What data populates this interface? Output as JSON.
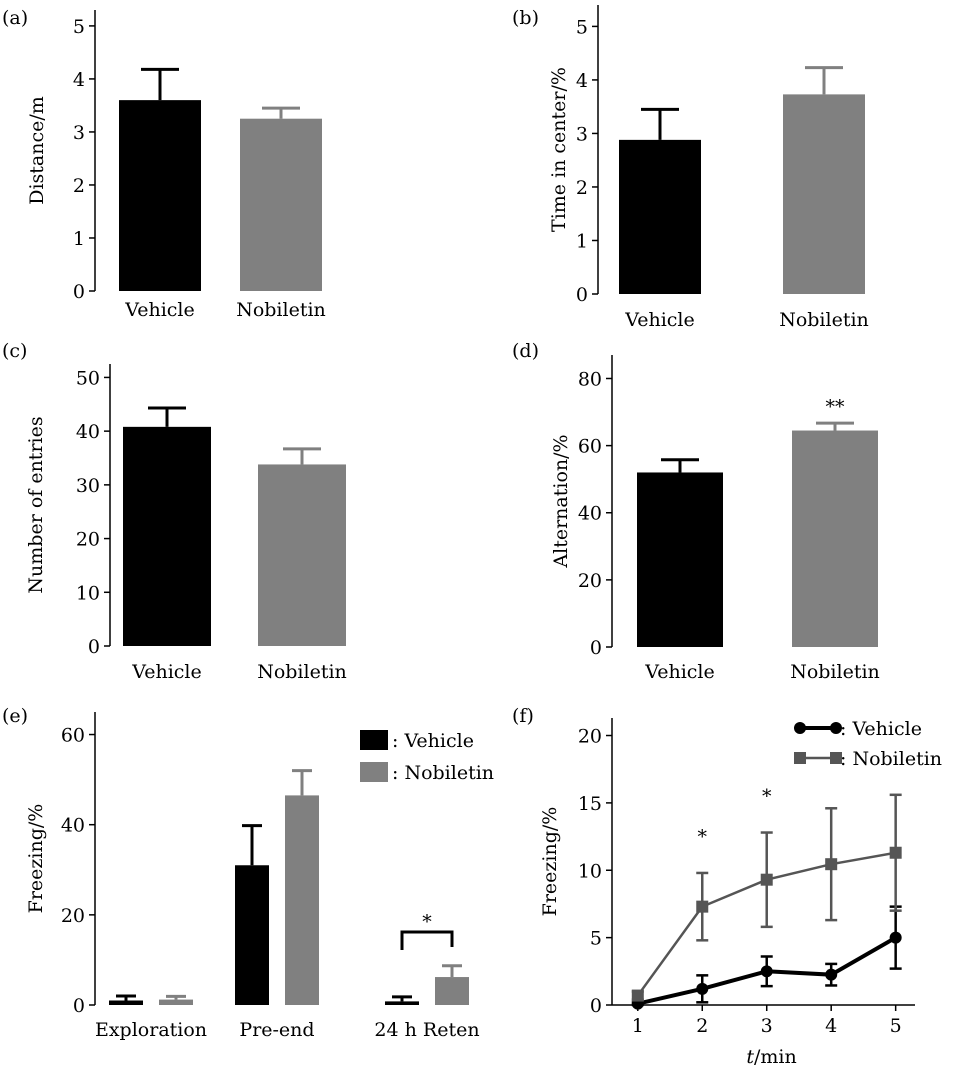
{
  "chart_data": [
    {
      "panel": "(a)",
      "type": "bar",
      "categories": [
        "Vehicle",
        "Nobiletin"
      ],
      "values": [
        3.6,
        3.25
      ],
      "errors": [
        0.58,
        0.2
      ],
      "colors": [
        "#000000",
        "#808080"
      ],
      "ylabel": "Distance/m",
      "ylim": [
        0,
        5
      ],
      "yticks": [
        "0",
        "1",
        "2",
        "3",
        "4",
        "5"
      ],
      "annotations": []
    },
    {
      "panel": "(b)",
      "type": "bar",
      "categories": [
        "Vehicle",
        "Nobiletin"
      ],
      "values": [
        2.88,
        3.73
      ],
      "errors": [
        0.57,
        0.5
      ],
      "colors": [
        "#000000",
        "#808080"
      ],
      "ylabel": "Time in center/%",
      "ylim": [
        0,
        5
      ],
      "yticks": [
        "0",
        "1",
        "2",
        "3",
        "4",
        "5"
      ],
      "annotations": []
    },
    {
      "panel": "(c)",
      "type": "bar",
      "categories": [
        "Vehicle",
        "Nobiletin"
      ],
      "values": [
        40.8,
        33.8
      ],
      "errors": [
        3.5,
        2.9
      ],
      "colors": [
        "#000000",
        "#808080"
      ],
      "ylabel": "Number of entries",
      "ylim": [
        0,
        50
      ],
      "yticks": [
        "0",
        "10",
        "20",
        "30",
        "40",
        "50"
      ],
      "annotations": []
    },
    {
      "panel": "(d)",
      "type": "bar",
      "categories": [
        "Vehicle",
        "Nobiletin"
      ],
      "values": [
        52,
        64.5
      ],
      "errors": [
        3.8,
        2.2
      ],
      "colors": [
        "#000000",
        "#808080"
      ],
      "ylabel": "Alternation/%",
      "ylim": [
        0,
        80
      ],
      "yticks": [
        "0",
        "20",
        "40",
        "60",
        "80"
      ],
      "annotations": [
        {
          "text": "**",
          "category": 1
        }
      ]
    },
    {
      "panel": "(e)",
      "type": "bar",
      "categories": [
        "Exploration",
        "Pre-end",
        "24 h Reten"
      ],
      "series": [
        {
          "name": ": Vehicle",
          "color": "#000000",
          "values": [
            1.0,
            31.0,
            0.8
          ],
          "errors": [
            1.0,
            8.8,
            1.0
          ]
        },
        {
          "name": ": Nobiletin",
          "color": "#808080",
          "values": [
            1.2,
            46.5,
            6.2
          ],
          "errors": [
            0.7,
            5.5,
            2.5
          ]
        }
      ],
      "ylabel": "Freezing/%",
      "ylim": [
        0,
        65
      ],
      "yticks": [
        "0",
        "20",
        "40",
        "60"
      ],
      "legend": "top-right",
      "annotations": [
        {
          "text": "*",
          "category": 2,
          "type": "bracket"
        }
      ]
    },
    {
      "panel": "(f)",
      "type": "line",
      "x": [
        1,
        2,
        3,
        4,
        5
      ],
      "series": [
        {
          "name": ": Vehicle",
          "color": "#000000",
          "marker": "circle",
          "values": [
            0.1,
            1.2,
            2.5,
            2.25,
            5.0
          ],
          "errors": [
            0.1,
            1.0,
            1.1,
            0.8,
            2.3
          ]
        },
        {
          "name": ": Nobiletin",
          "color": "#555555",
          "marker": "square",
          "values": [
            0.7,
            7.3,
            9.3,
            10.45,
            11.3
          ],
          "errors": [
            0.3,
            2.5,
            3.5,
            4.15,
            4.3
          ]
        }
      ],
      "xlabel_italic": "t",
      "xlabel_rest": "/min",
      "ylabel": "Freezing/%",
      "ylim": [
        0,
        21
      ],
      "xlim": [
        0.6,
        5.3
      ],
      "yticks": [
        "0",
        "5",
        "10",
        "15",
        "20"
      ],
      "xticks": [
        "1",
        "2",
        "3",
        "4",
        "5"
      ],
      "legend": "top-right",
      "annotations": [
        {
          "text": "*",
          "x": 2
        },
        {
          "text": "*",
          "x": 3
        }
      ]
    }
  ]
}
